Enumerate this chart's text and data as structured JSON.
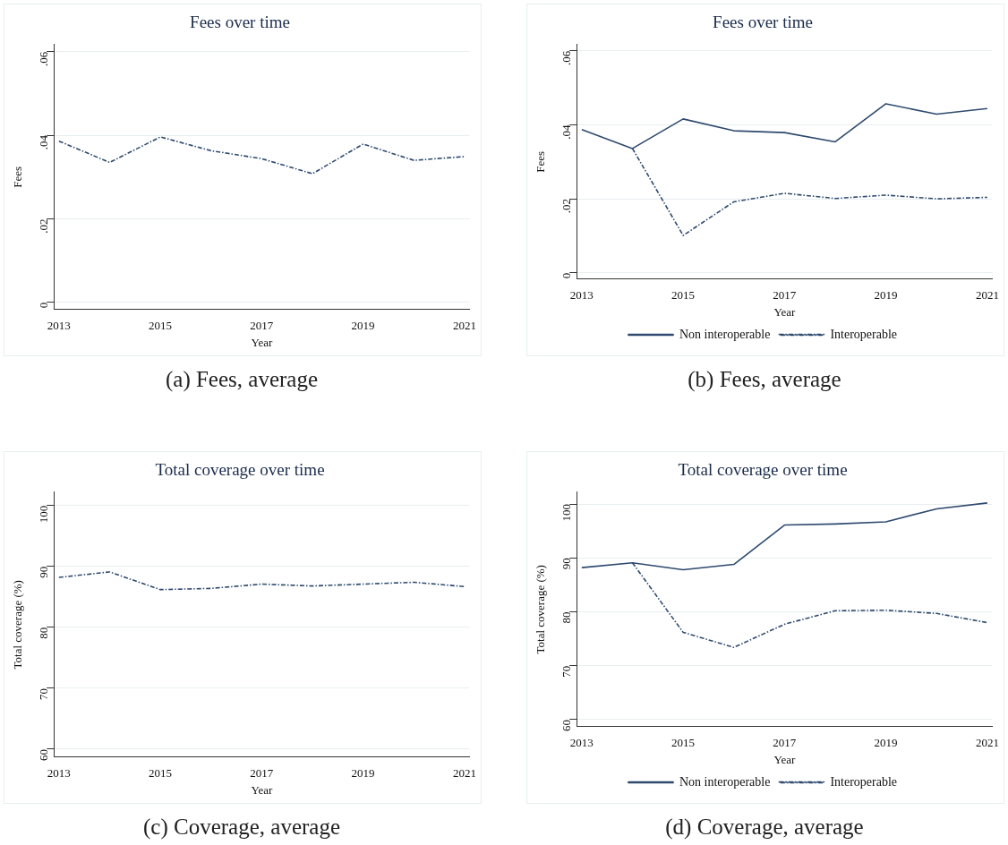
{
  "chart_data": [
    {
      "type": "line",
      "title": "Fees over time",
      "xlabel": "Year",
      "ylabel": "Fees",
      "x": [
        2013,
        2014,
        2015,
        2016,
        2017,
        2018,
        2019,
        2020,
        2021
      ],
      "series": [
        {
          "color": "#2e4a6e",
          "line_style": "dashed",
          "values": [
            0.0386,
            0.0335,
            0.0396,
            0.0363,
            0.0344,
            0.0308,
            0.0379,
            0.034,
            0.0349
          ]
        }
      ],
      "xlim": [
        2012.9,
        2021.1
      ],
      "xticks": [
        2013,
        2015,
        2017,
        2019,
        2021
      ],
      "ylim": [
        -0.0017,
        0.0617
      ],
      "yticks": [
        {
          "value": 0,
          "label": "0"
        },
        {
          "value": 0.02,
          "label": ".02"
        },
        {
          "value": 0.04,
          "label": ".04"
        },
        {
          "value": 0.06,
          "label": ".06"
        }
      ],
      "grid": "y",
      "marker": "none",
      "annotations": [
        "(a) Fees, average"
      ]
    },
    {
      "type": "line",
      "title": "Fees over time",
      "xlabel": "Year",
      "ylabel": "Fees",
      "x": [
        2013,
        2014,
        2015,
        2016,
        2017,
        2018,
        2019,
        2020,
        2021
      ],
      "series": [
        {
          "name": "Non interoperable",
          "color": "#2e4a6e",
          "line_style": "solid",
          "values": [
            0.0387,
            0.0336,
            0.0416,
            0.0384,
            0.0379,
            0.0354,
            0.0457,
            0.0429,
            0.0444
          ]
        },
        {
          "name": "Interoperable",
          "color": "#2e4a6e",
          "line_style": "dashed",
          "values": [
            null,
            0.0336,
            0.0101,
            0.0192,
            0.0215,
            0.0201,
            0.021,
            0.02,
            0.0204
          ]
        }
      ],
      "xlim": [
        2012.9,
        2021.1
      ],
      "xticks": [
        2013,
        2015,
        2017,
        2019,
        2021
      ],
      "ylim": [
        -0.0017,
        0.0617
      ],
      "yticks": [
        {
          "value": 0,
          "label": "0"
        },
        {
          "value": 0.02,
          "label": ".02"
        },
        {
          "value": 0.04,
          "label": ".04"
        },
        {
          "value": 0.06,
          "label": ".06"
        }
      ],
      "grid": "y",
      "marker": "none",
      "legend": "bottom",
      "annotations": [
        "(b) Fees, average"
      ]
    },
    {
      "type": "line",
      "title": "Total coverage over time",
      "xlabel": "Year",
      "ylabel": "Total coverage (%)",
      "x": [
        2013,
        2014,
        2015,
        2016,
        2017,
        2018,
        2019,
        2020,
        2021
      ],
      "series": [
        {
          "color": "#2e4a6e",
          "line_style": "dashed",
          "values": [
            88.2,
            89.1,
            86.2,
            86.4,
            87.1,
            86.8,
            87.1,
            87.4,
            86.7
          ]
        }
      ],
      "xlim": [
        2012.9,
        2021.1
      ],
      "xticks": [
        2013,
        2015,
        2017,
        2019,
        2021
      ],
      "ylim": [
        58.7,
        102.2
      ],
      "yticks": [
        60,
        70,
        80,
        90,
        100
      ],
      "grid": "y",
      "marker": "none",
      "annotations": [
        "(c) Coverage, average"
      ]
    },
    {
      "type": "line",
      "title": "Total coverage over time",
      "xlabel": "Year",
      "ylabel": "Total coverage (%)",
      "x": [
        2013,
        2014,
        2015,
        2016,
        2017,
        2018,
        2019,
        2020,
        2021
      ],
      "series": [
        {
          "name": "Non interoperable",
          "color": "#2e4a6e",
          "line_style": "solid",
          "values": [
            88.2,
            89.1,
            87.8,
            88.8,
            96.1,
            96.3,
            96.7,
            99.1,
            100.2
          ]
        },
        {
          "name": "Interoperable",
          "color": "#2e4a6e",
          "line_style": "dashed",
          "values": [
            null,
            89.1,
            76.2,
            73.4,
            77.7,
            80.2,
            80.3,
            79.7,
            78.0
          ]
        }
      ],
      "xlim": [
        2012.9,
        2021.1
      ],
      "xticks": [
        2013,
        2015,
        2017,
        2019,
        2021
      ],
      "ylim": [
        58.7,
        102.2
      ],
      "yticks": [
        60,
        70,
        80,
        90,
        100
      ],
      "grid": "y",
      "marker": "none",
      "legend": "bottom",
      "annotations": [
        "(d) Coverage, average"
      ]
    }
  ]
}
